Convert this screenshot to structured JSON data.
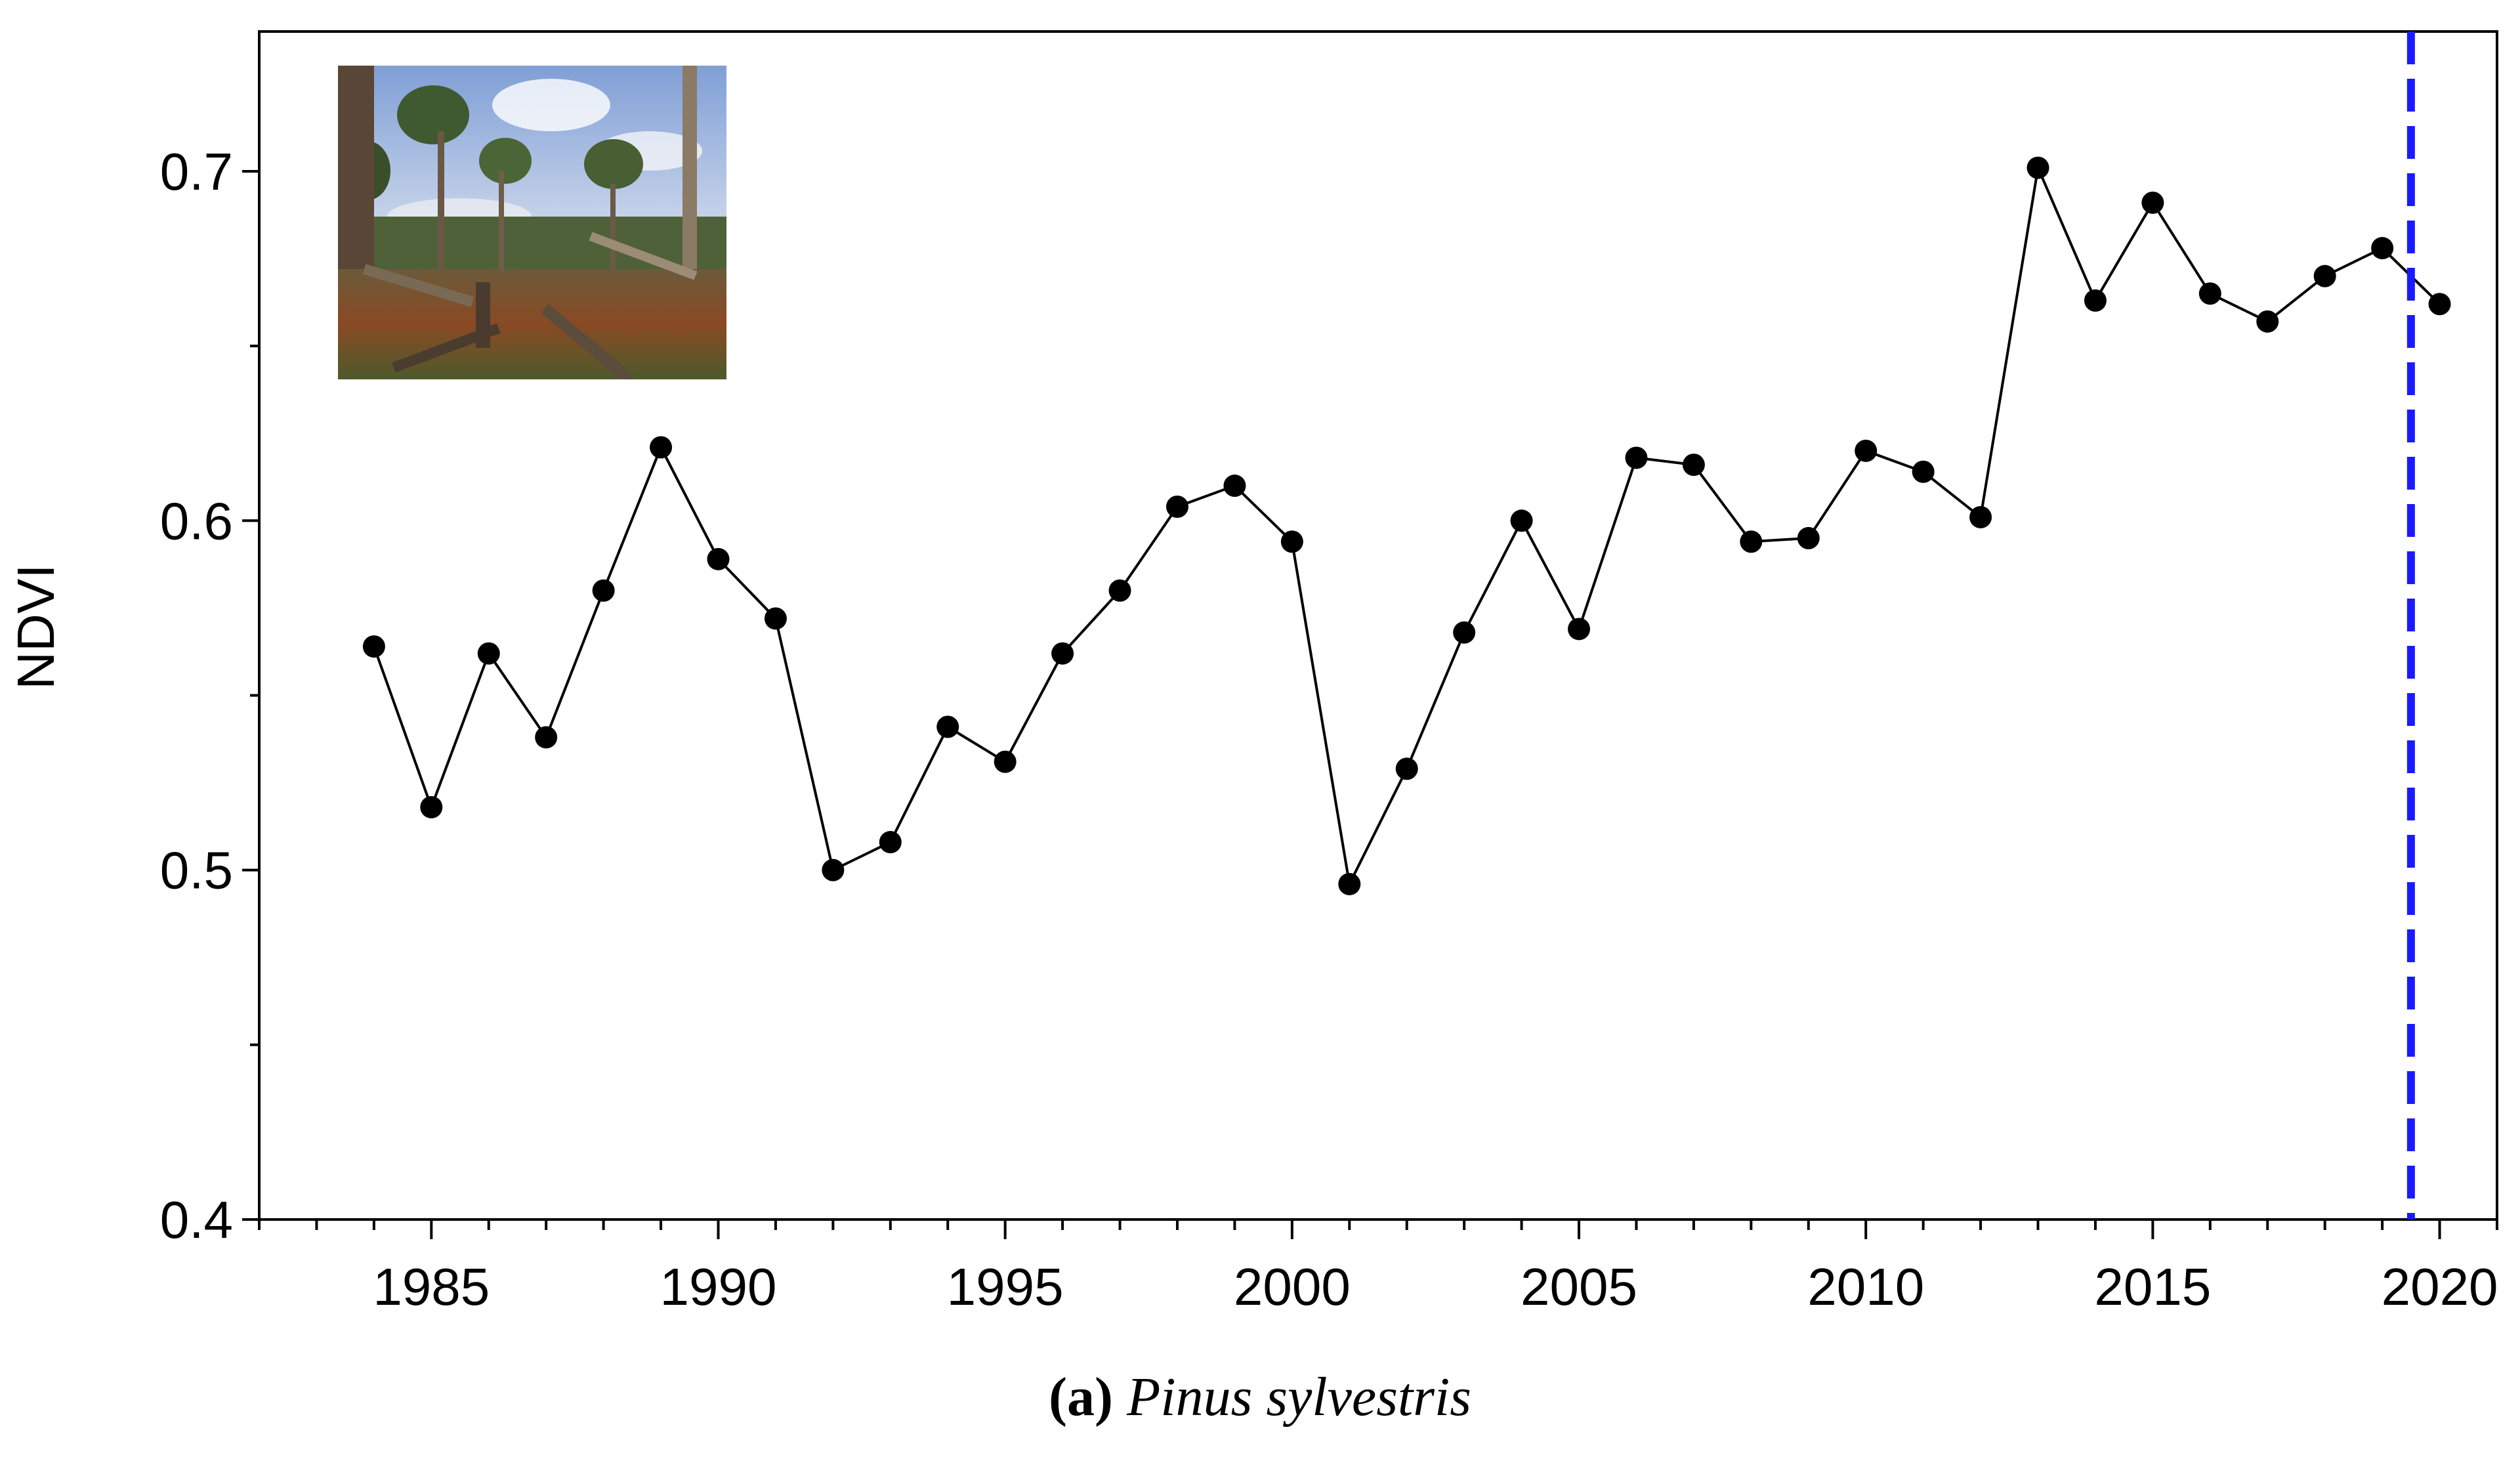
{
  "chart_data": {
    "type": "line",
    "title": "",
    "xlabel": "",
    "ylabel": "NDVI",
    "xlim": [
      1982,
      2021
    ],
    "ylim": [
      0.4,
      0.74
    ],
    "x_ticks": [
      1985,
      1990,
      1995,
      2000,
      2005,
      2010,
      2015,
      2020
    ],
    "x_tick_labels": [
      "1985",
      "1990",
      "1995",
      "2000",
      "2005",
      "2010",
      "2015",
      "2020"
    ],
    "y_ticks": [
      0.4,
      0.5,
      0.6,
      0.7
    ],
    "y_tick_labels": [
      "0.4",
      "0.5",
      "0.6",
      "0.7"
    ],
    "y_minor_ticks": [
      0.45,
      0.55,
      0.65
    ],
    "grid": false,
    "legend": "none",
    "series": [
      {
        "x": [
          1984,
          1985,
          1986,
          1987,
          1988,
          1989,
          1990,
          1991,
          1992,
          1993,
          1994,
          1995,
          1996,
          1997,
          1998,
          1999,
          2000,
          2001,
          2002,
          2003,
          2004,
          2005,
          2006,
          2007,
          2008,
          2009,
          2010,
          2011,
          2012,
          2013,
          2014,
          2015,
          2016,
          2017,
          2018,
          2019,
          2020
        ],
        "values": [
          0.564,
          0.518,
          0.562,
          0.538,
          0.58,
          0.621,
          0.589,
          0.572,
          0.5,
          0.508,
          0.541,
          0.531,
          0.562,
          0.58,
          0.604,
          0.61,
          0.594,
          0.496,
          0.529,
          0.568,
          0.6,
          0.569,
          0.618,
          0.616,
          0.594,
          0.595,
          0.62,
          0.614,
          0.601,
          0.701,
          0.663,
          0.691,
          0.665,
          0.657,
          0.67,
          0.678,
          0.662
        ],
        "color": "#000000",
        "marker": "filled-circle"
      }
    ],
    "reference_line": {
      "orientation": "vertical",
      "x": 2019.5,
      "style": "dashed",
      "color": "#1a1aff"
    }
  },
  "inset_photo": {
    "subject": "windthrown pine forest photo"
  },
  "caption": {
    "label": "(a)",
    "species": "Pinus sylvestris"
  },
  "colors": {
    "axis": "#000000",
    "line": "#000000",
    "marker": "#000000",
    "reference": "#1a1aff"
  }
}
